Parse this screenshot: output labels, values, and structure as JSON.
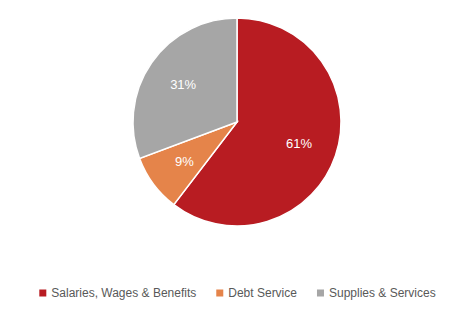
{
  "chart_data": {
    "type": "pie",
    "categories": [
      "Salaries, Wages & Benefits",
      "Debt Service",
      "Supplies & Services"
    ],
    "values": [
      61,
      9,
      31
    ],
    "value_labels": [
      "61%",
      "9%",
      "31%"
    ],
    "colors": [
      "#b81c22",
      "#e5844a",
      "#a6a6a6"
    ],
    "data_labels": true,
    "legend": "bottom"
  }
}
